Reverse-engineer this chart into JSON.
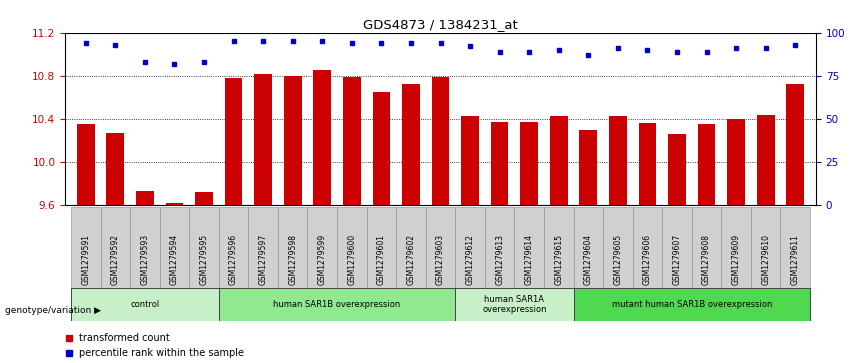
{
  "title": "GDS4873 / 1384231_at",
  "samples": [
    "GSM1279591",
    "GSM1279592",
    "GSM1279593",
    "GSM1279594",
    "GSM1279595",
    "GSM1279596",
    "GSM1279597",
    "GSM1279598",
    "GSM1279599",
    "GSM1279600",
    "GSM1279601",
    "GSM1279602",
    "GSM1279603",
    "GSM1279612",
    "GSM1279613",
    "GSM1279614",
    "GSM1279615",
    "GSM1279604",
    "GSM1279605",
    "GSM1279606",
    "GSM1279607",
    "GSM1279608",
    "GSM1279609",
    "GSM1279610",
    "GSM1279611"
  ],
  "bar_values": [
    10.35,
    10.27,
    9.73,
    9.62,
    9.72,
    10.78,
    10.82,
    10.8,
    10.85,
    10.79,
    10.65,
    10.72,
    10.79,
    10.43,
    10.37,
    10.37,
    10.43,
    10.3,
    10.43,
    10.36,
    10.26,
    10.35,
    10.4,
    10.44,
    10.72
  ],
  "percentile_values": [
    94,
    93,
    83,
    82,
    83,
    95,
    95,
    95,
    95,
    94,
    94,
    94,
    94,
    92,
    89,
    89,
    90,
    87,
    91,
    90,
    89,
    89,
    91,
    91,
    93
  ],
  "groups": [
    {
      "label": "control",
      "start": 0,
      "end": 4,
      "color": "#c8f0c8"
    },
    {
      "label": "human SAR1B overexpression",
      "start": 5,
      "end": 12,
      "color": "#90e890"
    },
    {
      "label": "human SAR1A\noverexpression",
      "start": 13,
      "end": 16,
      "color": "#c8f0c8"
    },
    {
      "label": "mutant human SAR1B overexpression",
      "start": 17,
      "end": 24,
      "color": "#50d850"
    }
  ],
  "ylim_left": [
    9.6,
    11.2
  ],
  "ylim_right": [
    0,
    100
  ],
  "yticks_left": [
    9.6,
    10.0,
    10.4,
    10.8,
    11.2
  ],
  "yticks_right": [
    0,
    25,
    50,
    75,
    100
  ],
  "bar_color": "#cc0000",
  "dot_color": "#0000cc",
  "bg_color": "#ffffff",
  "grid_color": "#000000",
  "ylabel_left_color": "#cc0000",
  "ylabel_right_color": "#0000cc",
  "legend_items": [
    "transformed count",
    "percentile rank within the sample"
  ],
  "genotype_label": "genotype/variation"
}
